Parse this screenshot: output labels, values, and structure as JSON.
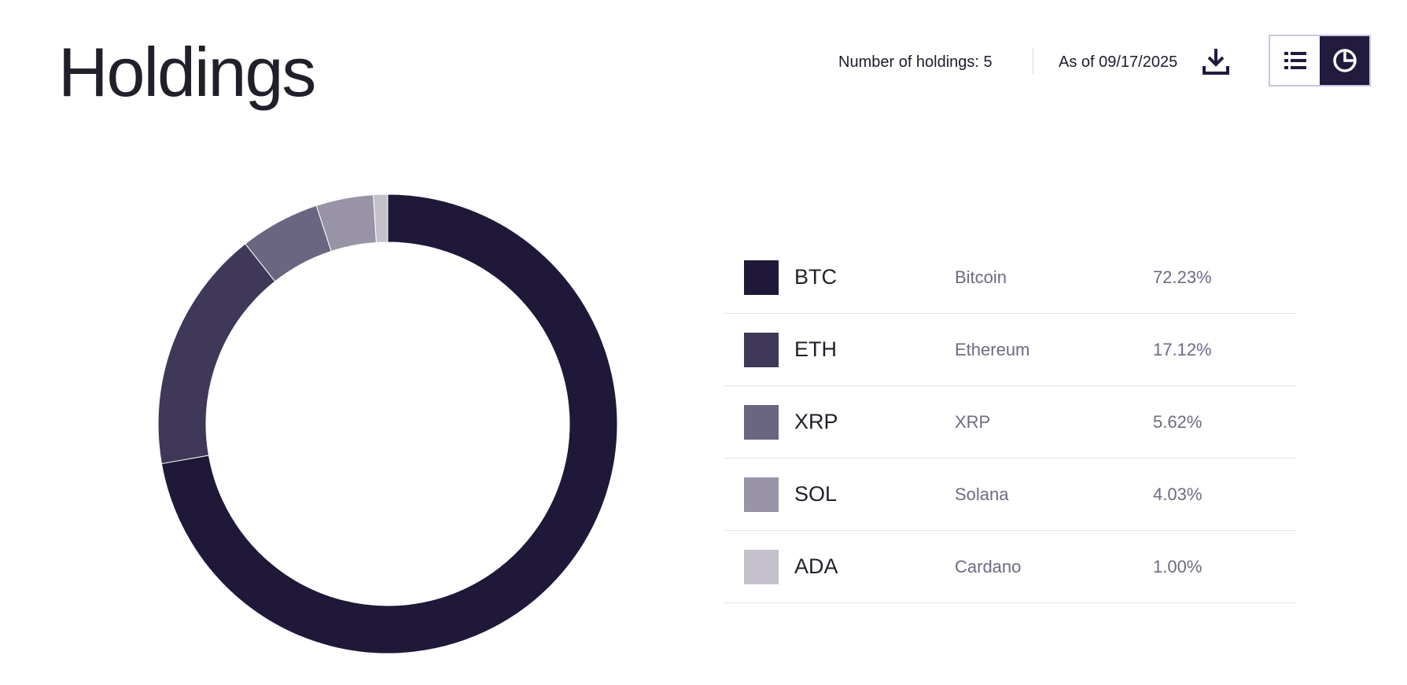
{
  "page": {
    "title": "Holdings",
    "holdings_count_text": "Number of holdings: 5",
    "as_of_text": "As of 09/17/2025"
  },
  "icons": {
    "download": "download-icon",
    "list_view": "list-view-icon",
    "chart_view": "pie-chart-icon"
  },
  "view_toggle": {
    "active": "chart"
  },
  "chart_data": {
    "type": "pie",
    "donut": true,
    "categories": [
      "BTC",
      "ETH",
      "XRP",
      "SOL",
      "ADA"
    ],
    "values": [
      72.23,
      17.12,
      5.62,
      4.03,
      1.0
    ],
    "colors": [
      "#1f1839",
      "#3f3858",
      "#6a6580",
      "#9893a6",
      "#c4c1cc"
    ]
  },
  "legend": [
    {
      "ticker": "BTC",
      "name": "Bitcoin",
      "percent": "72.23%",
      "color": "#1f1839"
    },
    {
      "ticker": "ETH",
      "name": "Ethereum",
      "percent": "17.12%",
      "color": "#3f3858"
    },
    {
      "ticker": "XRP",
      "name": "XRP",
      "percent": "5.62%",
      "color": "#6a6580"
    },
    {
      "ticker": "SOL",
      "name": "Solana",
      "percent": "4.03%",
      "color": "#9893a6"
    },
    {
      "ticker": "ADA",
      "name": "Cardano",
      "percent": "1.00%",
      "color": "#c4c1cc"
    }
  ]
}
